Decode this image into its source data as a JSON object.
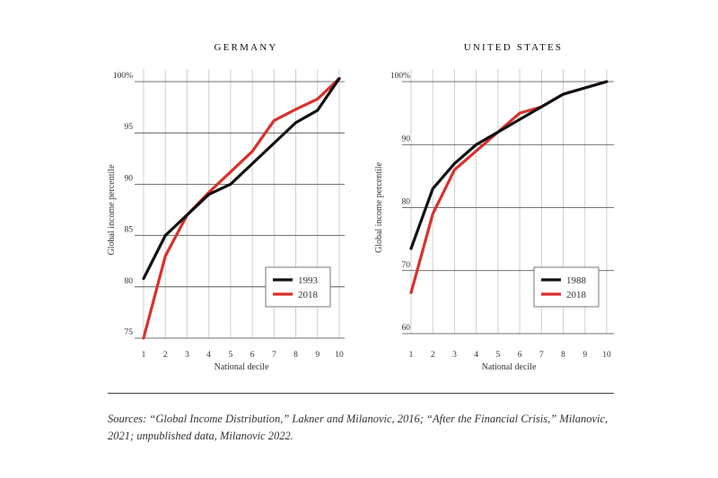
{
  "chart_data": [
    {
      "type": "line",
      "title": "GERMANY",
      "xlabel": "National decile",
      "ylabel": "Global income percentile",
      "x": [
        1,
        2,
        3,
        4,
        5,
        6,
        7,
        8,
        9,
        10
      ],
      "xlim": [
        1,
        10
      ],
      "ylim": [
        75,
        100
      ],
      "yticks": [
        75,
        80,
        85,
        90,
        95,
        100
      ],
      "ytick_labels": [
        "75",
        "80",
        "85",
        "90",
        "95",
        "100%"
      ],
      "grid": true,
      "legend_position": "bottom-right",
      "series": [
        {
          "name": "1993",
          "color": "#111111",
          "values": [
            80.8,
            85.0,
            87.0,
            89.0,
            90.0,
            92.0,
            94.0,
            96.0,
            97.2,
            100.3
          ]
        },
        {
          "name": "2018",
          "color": "#d9302c",
          "values": [
            75.0,
            83.0,
            87.0,
            89.2,
            91.2,
            93.2,
            96.2,
            97.3,
            98.3,
            100.3
          ]
        }
      ]
    },
    {
      "type": "line",
      "title": "UNITED STATES",
      "xlabel": "National decile",
      "ylabel": "Global income percentile",
      "x": [
        1,
        2,
        3,
        4,
        5,
        6,
        7,
        8,
        9,
        10
      ],
      "xlim": [
        1,
        10
      ],
      "ylim": [
        60,
        100
      ],
      "yticks": [
        60,
        70,
        80,
        90,
        100
      ],
      "ytick_labels": [
        "60",
        "70",
        "80",
        "90",
        "100%"
      ],
      "grid": true,
      "legend_position": "bottom-right",
      "series": [
        {
          "name": "1988",
          "color": "#111111",
          "values": [
            73.5,
            83.0,
            87.0,
            90.0,
            92.0,
            94.0,
            96.0,
            98.0,
            99.0,
            100.0
          ]
        },
        {
          "name": "2018",
          "color": "#d9302c",
          "values": [
            66.5,
            79.0,
            86.0,
            89.0,
            92.0,
            95.0,
            96.0,
            98.0,
            99.0,
            100.0
          ]
        }
      ]
    }
  ],
  "sources": "Sources: “Global Income Distribution,” Lakner and Milanovic, 2016; “After the Financial Crisis,” Milanovic, 2021; unpublished data, Milanovic 2022."
}
